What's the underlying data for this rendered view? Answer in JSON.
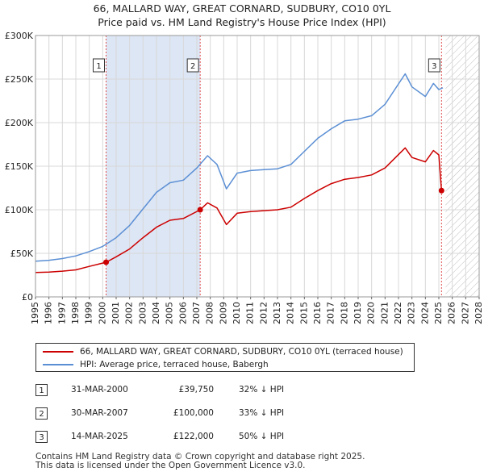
{
  "title_line1": "66, MALLARD WAY, GREAT CORNARD, SUDBURY, CO10 0YL",
  "title_line2": "Price paid vs. HM Land Registry's House Price Index (HPI)",
  "chart_data": {
    "type": "line",
    "ylim": [
      0,
      300000
    ],
    "xlim": [
      1995,
      2028
    ],
    "y_ticks": [
      0,
      50000,
      100000,
      150000,
      200000,
      250000,
      300000
    ],
    "y_tick_labels": [
      "£0",
      "£50K",
      "£100K",
      "£150K",
      "£200K",
      "£250K",
      "£300K"
    ],
    "x_ticks": [
      1995,
      1996,
      1997,
      1998,
      1999,
      2000,
      2001,
      2002,
      2003,
      2004,
      2005,
      2006,
      2007,
      2008,
      2009,
      2010,
      2011,
      2012,
      2013,
      2014,
      2015,
      2016,
      2017,
      2018,
      2019,
      2020,
      2021,
      2022,
      2023,
      2024,
      2025,
      2026,
      2027,
      2028
    ],
    "x_tick_labels": [
      "1995",
      "1996",
      "1997",
      "1998",
      "1999",
      "2000",
      "2001",
      "2002",
      "2003",
      "2004",
      "2005",
      "2006",
      "2007",
      "2008",
      "2009",
      "2010",
      "2011",
      "2012",
      "2013",
      "2014",
      "2015",
      "2016",
      "2017",
      "2018",
      "2019",
      "2020",
      "2021",
      "2022",
      "2023",
      "2024",
      "2025",
      "2026",
      "2027",
      "2028"
    ],
    "shaded_ranges": [
      [
        2000.25,
        2007.25
      ]
    ],
    "hatched_range": [
      2025.5,
      2028
    ],
    "series": [
      {
        "name": "66, MALLARD WAY, GREAT CORNARD, SUDBURY, CO10 0YL (terraced house)",
        "color": "#cc0000",
        "x": [
          1995,
          1996,
          1997,
          1998,
          1999,
          2000.25,
          2001,
          2002,
          2003,
          2004,
          2005,
          2006,
          2007.25,
          2007.8,
          2008.5,
          2009.2,
          2010,
          2011,
          2012,
          2013,
          2014,
          2015,
          2016,
          2017,
          2018,
          2019,
          2020,
          2021,
          2022.5,
          2023,
          2024,
          2024.6,
          2025.0,
          2025.2
        ],
        "values": [
          28000,
          28500,
          29500,
          31000,
          35000,
          39750,
          46000,
          55000,
          68000,
          80000,
          88000,
          90000,
          100000,
          108000,
          102000,
          83000,
          96000,
          98000,
          99000,
          100000,
          103000,
          113000,
          122000,
          130000,
          135000,
          137000,
          140000,
          148000,
          171000,
          160000,
          155000,
          168000,
          163000,
          122000
        ]
      },
      {
        "name": "HPI: Average price, terraced house, Babergh",
        "color": "#5b8fd4",
        "x": [
          1995,
          1996,
          1997,
          1998,
          1999,
          2000,
          2001,
          2002,
          2003,
          2004,
          2005,
          2006,
          2007,
          2007.8,
          2008.5,
          2009.2,
          2010,
          2011,
          2012,
          2013,
          2014,
          2015,
          2016,
          2017,
          2018,
          2019,
          2020,
          2021,
          2022.5,
          2023,
          2024,
          2024.6,
          2025.0,
          2025.3
        ],
        "values": [
          41000,
          42000,
          44000,
          47000,
          52000,
          58000,
          68000,
          82000,
          101000,
          120000,
          131000,
          134000,
          148000,
          162000,
          152000,
          124000,
          142000,
          145000,
          146000,
          147000,
          152000,
          167000,
          182000,
          193000,
          202000,
          204000,
          208000,
          221000,
          256000,
          241000,
          230000,
          245000,
          238000,
          240000
        ]
      }
    ],
    "events": [
      {
        "label": "1",
        "x": 2000.25,
        "y": 39750
      },
      {
        "label": "2",
        "x": 2007.25,
        "y": 100000
      },
      {
        "label": "3",
        "x": 2025.2,
        "y": 122000
      }
    ]
  },
  "legend": {
    "red_label": "66, MALLARD WAY, GREAT CORNARD, SUDBURY, CO10 0YL (terraced house)",
    "blue_label": "HPI: Average price, terraced house, Babergh"
  },
  "events_table": [
    {
      "num": "1",
      "date": "31-MAR-2000",
      "price": "£39,750",
      "hpi": "32% ↓ HPI"
    },
    {
      "num": "2",
      "date": "30-MAR-2007",
      "price": "£100,000",
      "hpi": "33% ↓ HPI"
    },
    {
      "num": "3",
      "date": "14-MAR-2025",
      "price": "£122,000",
      "hpi": "50% ↓ HPI"
    }
  ],
  "footer_line1": "Contains HM Land Registry data © Crown copyright and database right 2025.",
  "footer_line2": "This data is licensed under the Open Government Licence v3.0."
}
